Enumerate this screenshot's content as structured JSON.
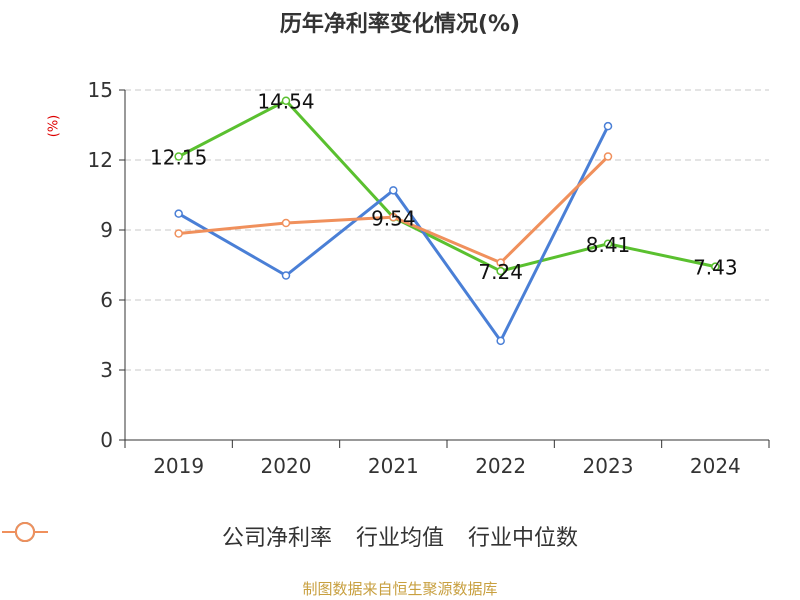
{
  "chart_data": {
    "type": "line",
    "title": "历年净利率变化情况(%)",
    "ylabel": "(%)",
    "xlabel": "",
    "categories": [
      "2019",
      "2020",
      "2021",
      "2022",
      "2023",
      "2024"
    ],
    "ylim": [
      0,
      15
    ],
    "yticks": [
      0,
      3,
      6,
      9,
      12,
      15
    ],
    "grid": true,
    "legend_position": "bottom",
    "series": [
      {
        "name": "公司净利率",
        "color": "#5ac02f",
        "values": [
          12.15,
          14.54,
          9.54,
          7.24,
          8.41,
          7.43
        ],
        "show_labels": true
      },
      {
        "name": "行业均值",
        "color": "#4a7fd6",
        "values": [
          9.7,
          7.05,
          10.7,
          4.25,
          13.45,
          null
        ],
        "show_labels": false
      },
      {
        "name": "行业中位数",
        "color": "#f0905c",
        "values": [
          8.85,
          9.3,
          9.55,
          7.6,
          12.15,
          null
        ],
        "show_labels": false
      }
    ]
  },
  "source_text": "制图数据来自恒生聚源数据库"
}
